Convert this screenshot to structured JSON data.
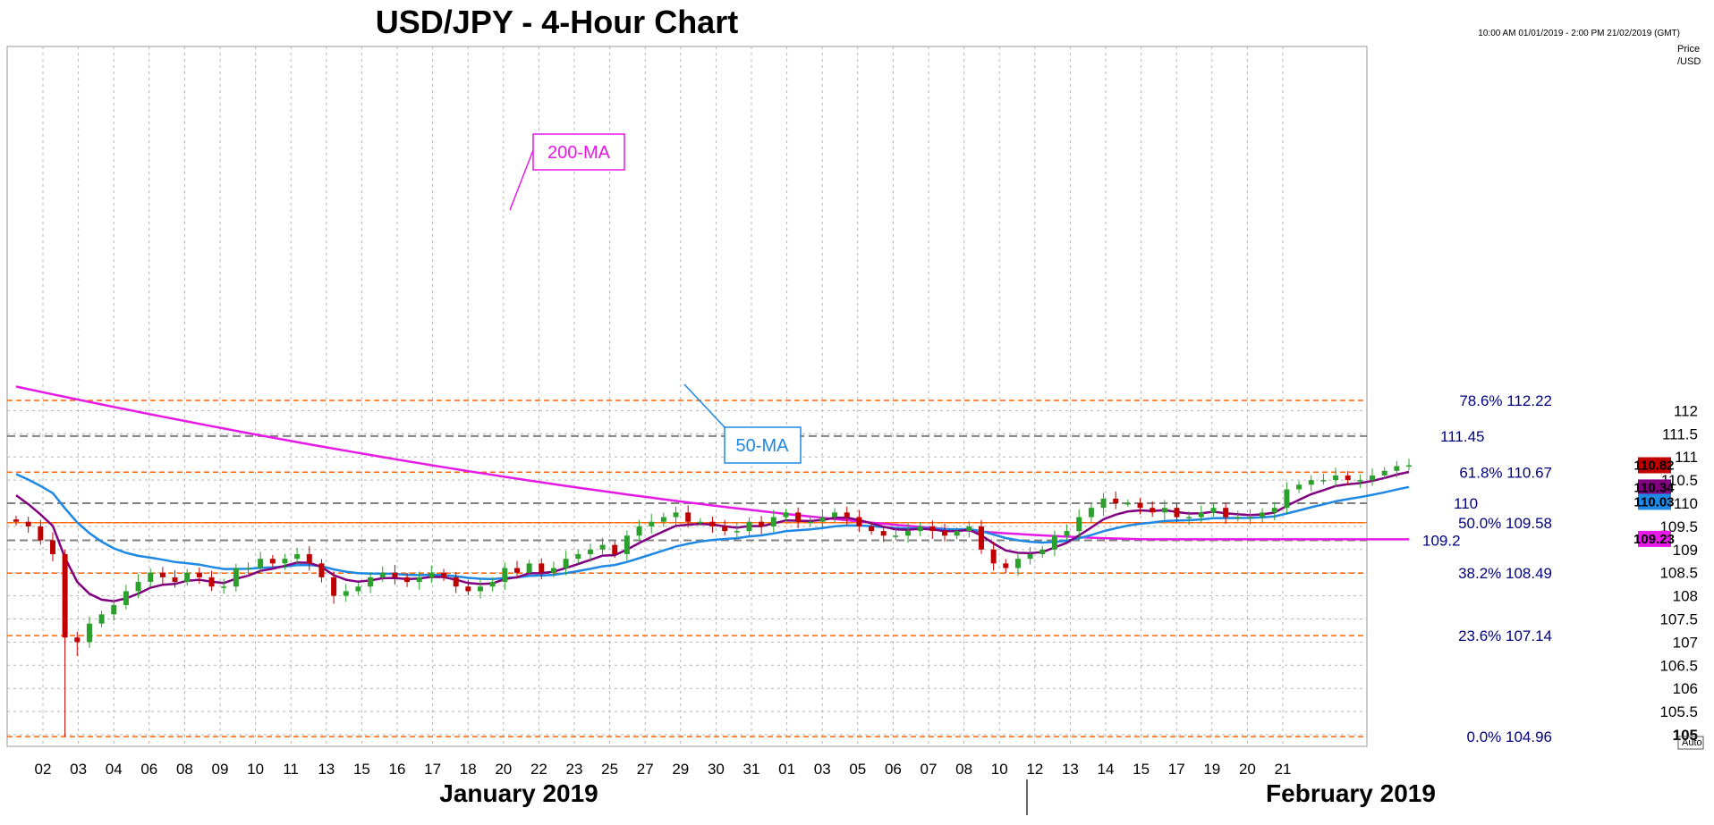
{
  "title": "USD/JPY - 4-Hour Chart",
  "date_range": "10:00 AM 01/01/2019 - 2:00 PM 21/02/2019 (GMT)",
  "axis": {
    "unit_label_1": "Price",
    "unit_label_2": "/USD",
    "auto_label": "Auto"
  },
  "colors": {
    "up_candle": "#2ca02c",
    "down_candle": "#c00000",
    "ma200": "#e619e6",
    "ma50": "#1e88e5",
    "ma_short": "#800080",
    "fib_line": "#ff6600",
    "dashed_level": "#808080"
  },
  "chart_data": {
    "type": "candlestick",
    "title": "USD/JPY - 4-Hour Chart",
    "ylim": [
      104.8,
      112.8
    ],
    "y_ticks": [
      105,
      105.5,
      106,
      106.5,
      107,
      107.5,
      108,
      108.5,
      109,
      109.5,
      110,
      110.5,
      111,
      111.5,
      112
    ],
    "y_tick_labels": [
      "105",
      "105.5",
      "106",
      "106.5",
      "107",
      "107.5",
      "108",
      "108.5",
      "109",
      "109.5",
      "110",
      "110.5",
      "111",
      "111.5",
      "112"
    ],
    "x_labels": [
      "02",
      "03",
      "04",
      "06",
      "08",
      "09",
      "10",
      "11",
      "13",
      "15",
      "16",
      "17",
      "18",
      "20",
      "22",
      "23",
      "25",
      "27",
      "29",
      "30",
      "31",
      "01",
      "03",
      "05",
      "06",
      "07",
      "08",
      "10",
      "12",
      "13",
      "14",
      "15",
      "17",
      "19",
      "20",
      "21"
    ],
    "months": [
      "January 2019",
      "February 2019"
    ],
    "fib_levels": [
      {
        "pct": "78.6%",
        "value": "112.22",
        "price": 112.22
      },
      {
        "pct": "61.8%",
        "value": "110.67",
        "price": 110.67
      },
      {
        "pct": "50.0%",
        "value": "109.58",
        "price": 109.58
      },
      {
        "pct": "38.2%",
        "value": "108.49",
        "price": 108.49
      },
      {
        "pct": "23.6%",
        "value": "107.14",
        "price": 107.14
      },
      {
        "pct": "0.0%",
        "value": "104.96",
        "price": 104.96
      }
    ],
    "dashed_levels": [
      {
        "value": "111.45",
        "price": 111.45
      },
      {
        "value": "110",
        "price": 110
      },
      {
        "value": "109.2",
        "price": 109.2
      }
    ],
    "price_tags": [
      {
        "text": "110.82",
        "price": 110.82,
        "color": "#c00000"
      },
      {
        "text": "110.34",
        "price": 110.34,
        "color": "#800080"
      },
      {
        "text": "110.03",
        "price": 110.03,
        "color": "#1e88e5"
      },
      {
        "text": "109.23",
        "price": 109.23,
        "color": "#e619e6"
      }
    ],
    "ma_labels": {
      "ma200": "200-MA",
      "ma50": "50-MA"
    },
    "closes": [
      109.6,
      109.5,
      109.2,
      108.9,
      107.1,
      107.0,
      107.4,
      107.6,
      107.8,
      108.1,
      108.3,
      108.5,
      108.4,
      108.3,
      108.5,
      108.4,
      108.2,
      108.2,
      108.6,
      108.6,
      108.8,
      108.7,
      108.8,
      108.9,
      108.7,
      108.4,
      108.0,
      108.1,
      108.2,
      108.4,
      108.5,
      108.4,
      108.3,
      108.4,
      108.5,
      108.4,
      108.2,
      108.1,
      108.2,
      108.3,
      108.6,
      108.5,
      108.7,
      108.5,
      108.6,
      108.8,
      108.9,
      109.0,
      109.1,
      108.9,
      109.3,
      109.5,
      109.6,
      109.7,
      109.8,
      109.6,
      109.6,
      109.5,
      109.4,
      109.4,
      109.6,
      109.5,
      109.7,
      109.8,
      109.6,
      109.6,
      109.7,
      109.8,
      109.7,
      109.5,
      109.4,
      109.3,
      109.3,
      109.4,
      109.5,
      109.4,
      109.3,
      109.4,
      109.5,
      109.0,
      108.7,
      108.6,
      108.8,
      108.9,
      109.0,
      109.3,
      109.4,
      109.7,
      109.9,
      110.1,
      110.0,
      110.0,
      109.9,
      109.8,
      109.9,
      109.7,
      109.7,
      109.8,
      109.9,
      109.7,
      109.7,
      109.7,
      109.8,
      109.9,
      110.3,
      110.4,
      110.5,
      110.5,
      110.6,
      110.5,
      110.5,
      110.6,
      110.7,
      110.8,
      110.82
    ]
  }
}
